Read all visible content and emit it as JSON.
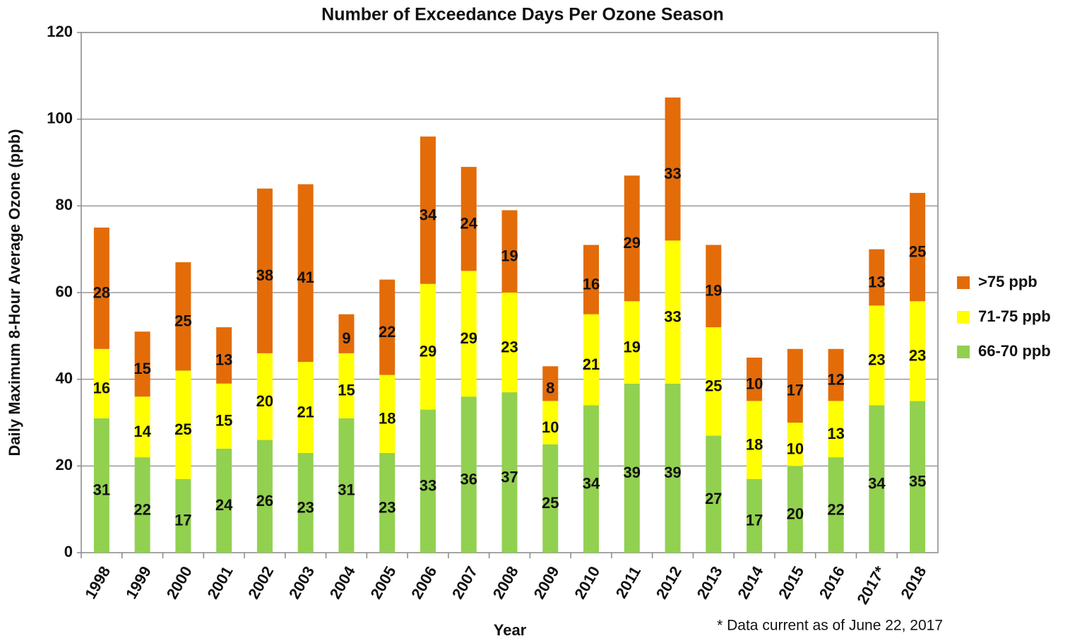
{
  "chart_data": {
    "type": "stacked_bar",
    "title": "Number of Exceedance Days Per Ozone Season",
    "x_label": "Year",
    "y_label": "Daily Maximum 8-Hour Average Ozone (ppb)",
    "footnote": "* Data current as of June 22, 2017",
    "categories": [
      "1998",
      "1999",
      "2000",
      "2001",
      "2002",
      "2003",
      "2004",
      "2005",
      "2006",
      "2007",
      "2008",
      "2009",
      "2010",
      "2011",
      "2012",
      "2013",
      "2014",
      "2015",
      "2016",
      "2017*",
      "2018"
    ],
    "series": [
      {
        "name": "66-70 ppb",
        "color": "#92d050",
        "values": [
          31,
          22,
          17,
          24,
          26,
          23,
          31,
          23,
          33,
          36,
          37,
          25,
          34,
          39,
          39,
          27,
          17,
          20,
          22,
          34,
          35
        ]
      },
      {
        "name": "71-75 ppb",
        "color": "#ffff00",
        "values": [
          16,
          14,
          25,
          15,
          20,
          21,
          15,
          18,
          29,
          29,
          23,
          10,
          21,
          19,
          33,
          25,
          18,
          10,
          13,
          23,
          23
        ]
      },
      {
        "name": ">75 ppb",
        "color": "#e36c09",
        "values": [
          28,
          15,
          25,
          13,
          38,
          41,
          9,
          22,
          34,
          24,
          19,
          8,
          16,
          29,
          33,
          19,
          10,
          17,
          12,
          13,
          25
        ]
      }
    ],
    "ylim": [
      0,
      120
    ],
    "yticks": [
      0,
      20,
      40,
      60,
      80,
      100,
      120
    ],
    "grid": true,
    "legend": "right"
  }
}
